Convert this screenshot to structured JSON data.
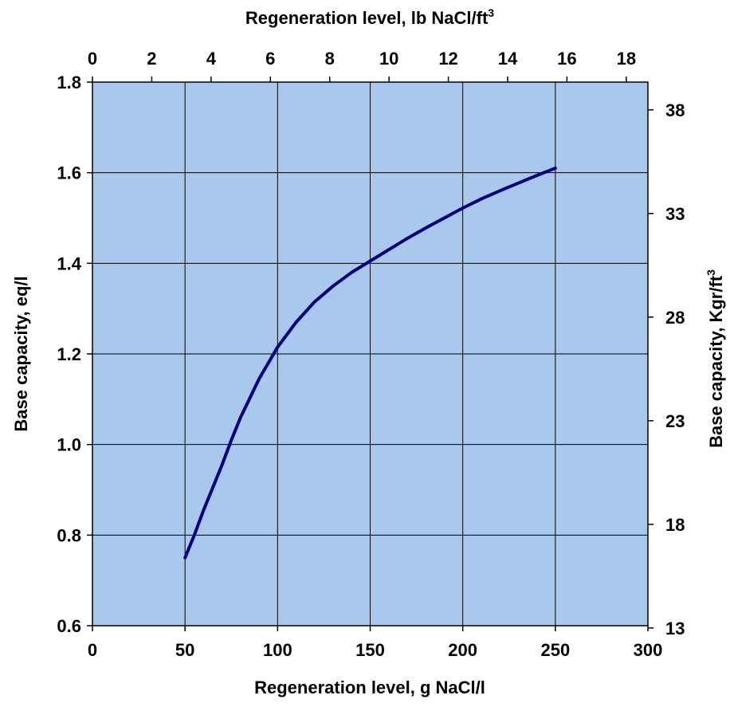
{
  "colors": {
    "plot_background": "#a8c8ee",
    "grid": "#000000",
    "curve": "#000080",
    "axis": "#000000"
  },
  "chart_data": {
    "type": "line",
    "grid": true,
    "xlabel_bottom": "Regeneration level, g NaCl/l",
    "xlabel_top_base": "Regeneration level, lb NaCl/ft",
    "xlabel_top_sup": "3",
    "ylabel_left": "Base capacity, eq/l",
    "ylabel_right_base": "Base capacity, Kgr/ft",
    "ylabel_right_sup": "3",
    "x_bottom": {
      "range": [
        0,
        300
      ],
      "ticks": [
        0,
        50,
        100,
        150,
        200,
        250,
        300
      ],
      "tick_labels": [
        "0",
        "50",
        "100",
        "150",
        "200",
        "250",
        "300"
      ]
    },
    "x_top": {
      "range": [
        0,
        18.73
      ],
      "ticks": [
        0,
        2,
        4,
        6,
        8,
        10,
        12,
        14,
        16,
        18
      ],
      "tick_labels": [
        "0",
        "2",
        "4",
        "6",
        "8",
        "10",
        "12",
        "14",
        "16",
        "18"
      ]
    },
    "y_left": {
      "range": [
        0.6,
        1.8
      ],
      "ticks": [
        0.6,
        0.8,
        1.0,
        1.2,
        1.4,
        1.6,
        1.8
      ],
      "tick_labels": [
        "0.6",
        "0.8",
        "1.0",
        "1.2",
        "1.4",
        "1.6",
        "1.8"
      ]
    },
    "y_right": {
      "range": [
        13.11,
        39.34
      ],
      "ticks": [
        13,
        18,
        23,
        28,
        33,
        38
      ],
      "tick_labels": [
        "13",
        "18",
        "23",
        "28",
        "33",
        "38"
      ]
    },
    "series": [
      {
        "x": [
          50,
          55,
          60,
          65,
          70,
          75,
          80,
          90,
          100,
          110,
          120,
          130,
          140,
          150,
          160,
          170,
          180,
          190,
          200,
          210,
          220,
          230,
          240,
          250
        ],
        "y": [
          0.75,
          0.8,
          0.855,
          0.905,
          0.955,
          1.01,
          1.06,
          1.145,
          1.215,
          1.27,
          1.315,
          1.35,
          1.38,
          1.405,
          1.43,
          1.455,
          1.478,
          1.5,
          1.522,
          1.542,
          1.56,
          1.577,
          1.594,
          1.61
        ]
      }
    ]
  }
}
